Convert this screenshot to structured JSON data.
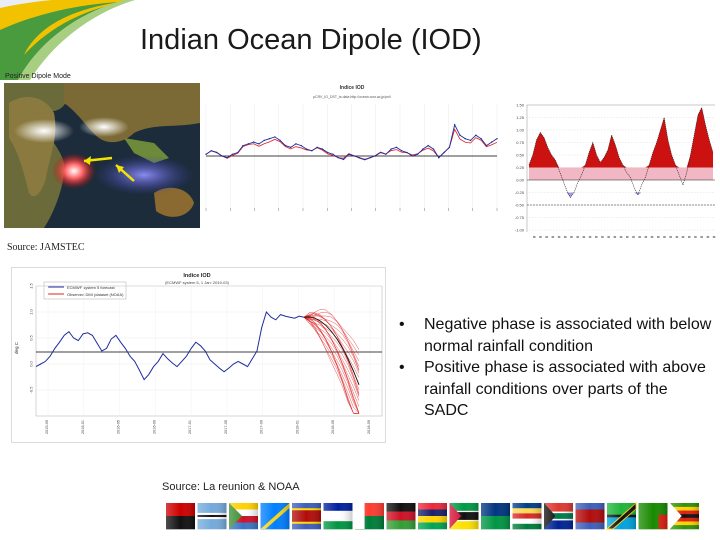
{
  "slide": {
    "title": "Indian Ocean Dipole (IOD)",
    "map_label": "Positive Dipole Mode",
    "source_top": "Source: JAMSTEC",
    "source_bottom": "Source: La reunion & NOAA",
    "bullets": [
      "Negative phase is associated with below normal rainfall condition",
      "Positive phase is associated with above rainfall conditions over parts of the SADC"
    ]
  },
  "colors": {
    "observed": "#1f2d9e",
    "forecast": "#e02020",
    "positive_fill": "#cc1111",
    "pink_fill": "#f2b7c4",
    "negative_fill": "#a99be0",
    "swoosh_green": "#4a9a3e",
    "swoosh_yellow": "#f2c200"
  },
  "chart_data": [
    {
      "type": "line",
      "title": "Indice IOD",
      "subtitle": "(ECMWF system 5, 1 Jan: 2019-03)",
      "legend": [
        "ECMWF system 5 forecast",
        "Observed DMI (dataset (NOAA)"
      ],
      "legend_position": "top-left",
      "ylim": [
        -1,
        1.5
      ],
      "yticks": [
        "-0.5",
        "0.0",
        "0.5",
        "1.0",
        "1.5"
      ],
      "xticks": [
        "2015-09",
        "2016-01",
        "2016-05",
        "2016-09",
        "2017-01",
        "2017-05",
        "2017-09",
        "2018-01",
        "2018-05",
        "2018-09"
      ],
      "series": [
        {
          "name": "Observed DMI (dataset (NOAA)",
          "values": [
            -0.05,
            0.0,
            0.05,
            0.15,
            0.3,
            0.42,
            0.55,
            0.62,
            0.5,
            0.45,
            0.58,
            0.6,
            0.55,
            0.4,
            0.25,
            0.3,
            0.48,
            0.55,
            0.42,
            0.3,
            0.15,
            0.05,
            -0.12,
            -0.3,
            -0.2,
            -0.05,
            0.05,
            0.2,
            0.1,
            0.02,
            -0.05,
            0.05,
            0.15,
            0.3,
            0.42,
            0.35,
            0.25,
            0.08,
            0.0,
            -0.08,
            -0.15,
            -0.08,
            0.0,
            0.05,
            0.0,
            -0.05,
            0.1,
            0.25,
            0.7,
            1.0,
            0.9,
            0.85,
            0.95,
            0.92,
            0.9,
            0.88,
            0.92,
            0.9
          ]
        }
      ]
    },
    {
      "type": "line",
      "title": "Indice IOD",
      "subtitle": "pCRV_IO_DST_ts.data  http://ocean.ccsr.ac.jp/pnl/",
      "legend": [],
      "ylim": [
        -1.5,
        1.5
      ],
      "series": [
        {
          "name": "",
          "values": [
            0.05,
            0.15,
            0.1,
            0.0,
            -0.05,
            0.05,
            0.1,
            0.3,
            0.35,
            0.4,
            0.35,
            0.45,
            0.5,
            0.55,
            0.45,
            0.3,
            0.25,
            0.35,
            0.3,
            0.2,
            0.15,
            0.25,
            0.2,
            0.1,
            0.05,
            -0.05,
            -0.1,
            0.05,
            0.0,
            -0.05,
            -0.1,
            -0.05,
            0.0,
            0.1,
            0.05,
            0.2,
            0.25,
            0.15,
            0.1,
            0.0,
            0.05,
            0.2,
            0.3,
            0.2,
            -0.05,
            0.1,
            0.25,
            0.9,
            0.6,
            0.5,
            0.45,
            0.6,
            0.5,
            0.3,
            0.4,
            0.5
          ]
        }
      ]
    },
    {
      "type": "area",
      "title": "",
      "yticks": [
        "1.50",
        "1.25",
        "1.00",
        "0.75",
        "0.50",
        "0.25",
        "0.00",
        "-0.25",
        "-0.50",
        "-0.75",
        "-1.00"
      ],
      "ylim": [
        -1.0,
        1.5
      ],
      "series": [
        {
          "name": "",
          "values": [
            0.3,
            0.5,
            0.8,
            0.95,
            0.85,
            0.65,
            0.5,
            0.4,
            0.2,
            0.0,
            -0.2,
            -0.35,
            -0.25,
            -0.05,
            0.1,
            0.3,
            0.55,
            0.75,
            0.5,
            0.35,
            0.45,
            0.6,
            0.9,
            0.7,
            0.45,
            0.3,
            0.15,
            0.05,
            -0.15,
            -0.3,
            -0.1,
            0.05,
            0.3,
            0.55,
            0.75,
            1.0,
            1.25,
            0.8,
            0.5,
            0.3,
            0.1,
            -0.1,
            0.15,
            0.5,
            0.9,
            1.3,
            1.45,
            1.1,
            0.8,
            0.55
          ]
        }
      ]
    }
  ],
  "flags": [
    "angola",
    "botswana",
    "comoros",
    "drc",
    "eswatini",
    "lesotho",
    "madagascar",
    "malawi",
    "mauritius",
    "mozambique",
    "namibia",
    "seychelles",
    "south-africa",
    "swaziland",
    "tanzania",
    "zambia",
    "zimbabwe"
  ]
}
